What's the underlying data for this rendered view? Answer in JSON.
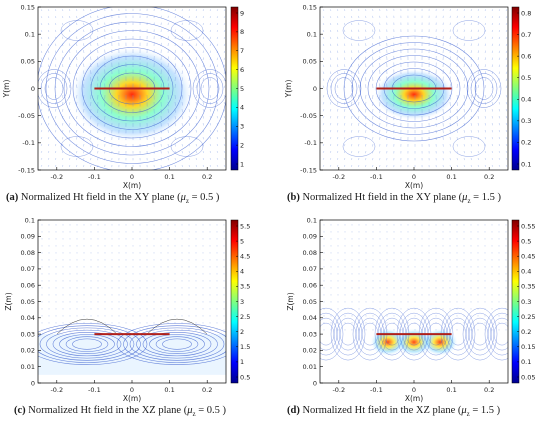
{
  "panels": [
    {
      "id": "a",
      "caption_tag": "(a)",
      "caption_text": "Normalized Ht field in the XY plane (",
      "caption_mu": "μ",
      "caption_sub": "z",
      "caption_val": " = 0.5 )",
      "xlabel": "X(m)",
      "ylabel": "Y(m)",
      "xticks": [
        "-0.2",
        "-0.1",
        "0",
        "0.1",
        "0.2"
      ],
      "yticks": [
        "0.15",
        "0.1",
        "0.05",
        "0",
        "-0.05",
        "-0.1",
        "-0.15"
      ],
      "cbar_ticks": [
        "9",
        "8",
        "7",
        "6",
        "5",
        "4",
        "3",
        "2",
        "1"
      ]
    },
    {
      "id": "b",
      "caption_tag": "(b)",
      "caption_text": "Normalized Ht field in the XY plane (",
      "caption_mu": "μ",
      "caption_sub": "z",
      "caption_val": " = 1.5 )",
      "xlabel": "X(m)",
      "ylabel": "Y(m)",
      "xticks": [
        "-0.2",
        "-0.1",
        "0",
        "0.1",
        "0.2"
      ],
      "yticks": [
        "0.15",
        "0.1",
        "0.05",
        "0",
        "-0.05",
        "-0.1",
        "-0.15"
      ],
      "cbar_ticks": [
        "0.8",
        "0.7",
        "0.6",
        "0.5",
        "0.4",
        "0.3",
        "0.2",
        "0.1"
      ]
    },
    {
      "id": "c",
      "caption_tag": "(c)",
      "caption_text": "Normalized Ht field in the XZ plane (",
      "caption_mu": "μ",
      "caption_sub": "z",
      "caption_val": " = 0.5 )",
      "xlabel": "X(m)",
      "ylabel": "Z(m)",
      "xticks": [
        "-0.2",
        "-0.1",
        "0",
        "0.1",
        "0.2"
      ],
      "yticks": [
        "0.1",
        "0.09",
        "0.08",
        "0.07",
        "0.06",
        "0.05",
        "0.04",
        "0.03",
        "0.02",
        "0.01",
        "0"
      ],
      "cbar_ticks": [
        "5.5",
        "5",
        "4.5",
        "4",
        "3.5",
        "3",
        "2.5",
        "2",
        "1.5",
        "1",
        "0.5"
      ]
    },
    {
      "id": "d",
      "caption_tag": "(d)",
      "caption_text": "Normalized Ht field in the XZ plane (",
      "caption_mu": "μ",
      "caption_sub": "z",
      "caption_val": " = 1.5 )",
      "xlabel": "X(m)",
      "ylabel": "Z(m)",
      "xticks": [
        "-0.2",
        "-0.1",
        "0",
        "0.1",
        "0.2"
      ],
      "yticks": [
        "0.1",
        "0.09",
        "0.08",
        "0.07",
        "0.06",
        "0.05",
        "0.04",
        "0.03",
        "0.02",
        "0.01",
        "0"
      ],
      "cbar_ticks": [
        "0.55",
        "0.5",
        "0.45",
        "0.4",
        "0.35",
        "0.3",
        "0.25",
        "0.2",
        "0.15",
        "0.1",
        "0.05"
      ]
    }
  ],
  "colors": {
    "contour": "#3b5fd0",
    "arrow": "#6d8fe0",
    "coil": "#b0201a",
    "hot": "#d7191c",
    "cold": "#2c7bb6"
  }
}
